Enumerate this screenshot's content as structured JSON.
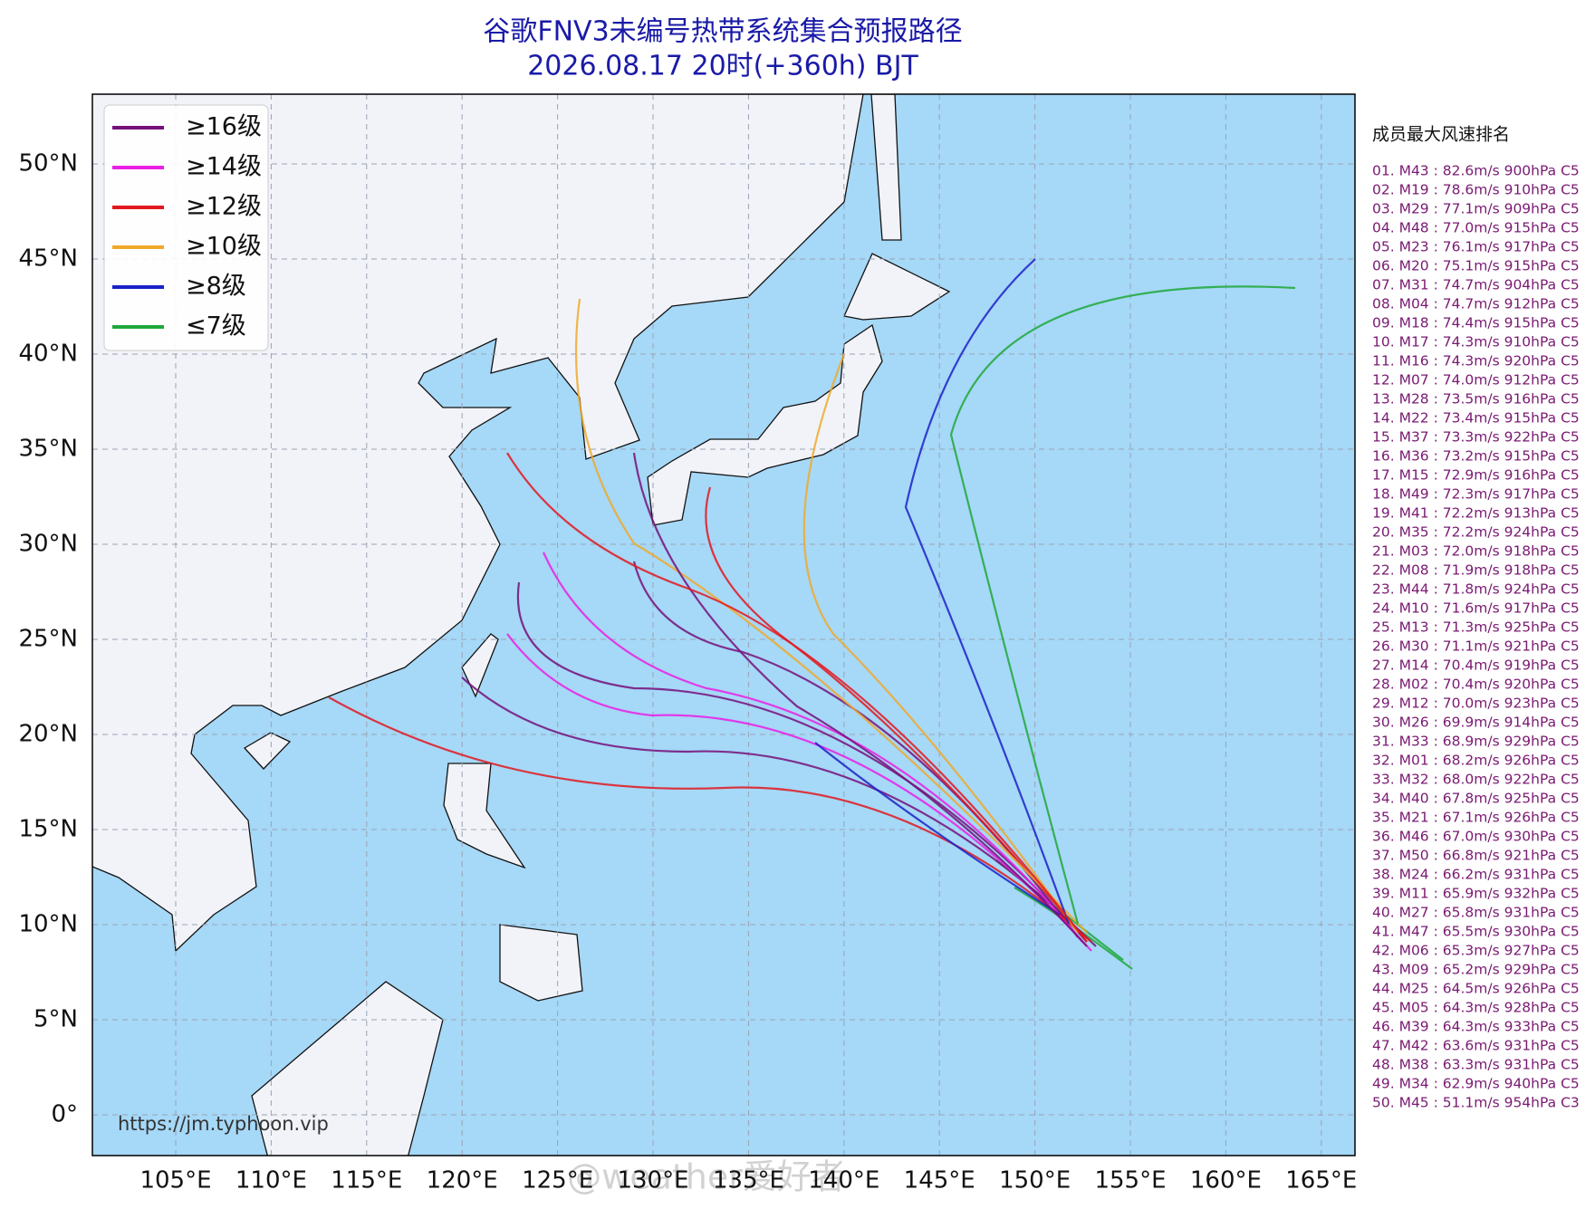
{
  "header": {
    "title": "谷歌FNV3未编号热带系统集合预报路径",
    "subtitle": "2026.08.17 20时(+360h) BJT"
  },
  "legend": [
    {
      "label": "≥16级",
      "color": "#76107a"
    },
    {
      "label": "≥14级",
      "color": "#ea1fe6"
    },
    {
      "label": "≥12级",
      "color": "#e3171f"
    },
    {
      "label": "≥10级",
      "color": "#f0a92a"
    },
    {
      "label": "≥8级",
      "color": "#1b22c8"
    },
    {
      "label": "≤7级",
      "color": "#1fa83a"
    }
  ],
  "map": {
    "lat_ticks": [
      "50°N",
      "45°N",
      "40°N",
      "35°N",
      "30°N",
      "25°N",
      "20°N",
      "15°N",
      "10°N",
      "5°N",
      "0°"
    ],
    "lon_ticks": [
      "105°E",
      "110°E",
      "115°E",
      "120°E",
      "125°E",
      "130°E",
      "135°E",
      "140°E",
      "145°E",
      "150°E",
      "155°E",
      "160°E",
      "165°E"
    ],
    "source": "https://jm.typhoon.vip",
    "watermark": "@weather爱好者"
  },
  "ranking": {
    "title": "成员最大风速排名",
    "items": [
      "01. M43 : 82.6m/s 900hPa C5",
      "02. M19 : 78.6m/s 910hPa C5",
      "03. M29 : 77.1m/s 909hPa C5",
      "04. M48 : 77.0m/s 915hPa C5",
      "05. M23 : 76.1m/s 917hPa C5",
      "06. M20 : 75.1m/s 915hPa C5",
      "07. M31 : 74.7m/s 904hPa C5",
      "08. M04 : 74.7m/s 912hPa C5",
      "09. M18 : 74.4m/s 915hPa C5",
      "10. M17 : 74.3m/s 910hPa C5",
      "11. M16 : 74.3m/s 920hPa C5",
      "12. M07 : 74.0m/s 912hPa C5",
      "13. M28 : 73.5m/s 916hPa C5",
      "14. M22 : 73.4m/s 915hPa C5",
      "15. M37 : 73.3m/s 922hPa C5",
      "16. M36 : 73.2m/s 915hPa C5",
      "17. M15 : 72.9m/s 916hPa C5",
      "18. M49 : 72.3m/s 917hPa C5",
      "19. M41 : 72.2m/s 913hPa C5",
      "20. M35 : 72.2m/s 924hPa C5",
      "21. M03 : 72.0m/s 918hPa C5",
      "22. M08 : 71.9m/s 918hPa C5",
      "23. M44 : 71.8m/s 924hPa C5",
      "24. M10 : 71.6m/s 917hPa C5",
      "25. M13 : 71.3m/s 925hPa C5",
      "26. M30 : 71.1m/s 921hPa C5",
      "27. M14 : 70.4m/s 919hPa C5",
      "28. M02 : 70.4m/s 920hPa C5",
      "29. M12 : 70.0m/s 923hPa C5",
      "30. M26 : 69.9m/s 914hPa C5",
      "31. M33 : 68.9m/s 929hPa C5",
      "32. M01 : 68.2m/s 926hPa C5",
      "33. M32 : 68.0m/s 922hPa C5",
      "34. M40 : 67.8m/s 925hPa C5",
      "35. M21 : 67.1m/s 926hPa C5",
      "36. M46 : 67.0m/s 930hPa C5",
      "37. M50 : 66.8m/s 921hPa C5",
      "38. M24 : 66.2m/s 931hPa C5",
      "39. M11 : 65.9m/s 932hPa C5",
      "40. M27 : 65.8m/s 931hPa C5",
      "41. M47 : 65.5m/s 930hPa C5",
      "42. M06 : 65.3m/s 927hPa C5",
      "43. M09 : 65.2m/s 929hPa C5",
      "44. M25 : 64.5m/s 926hPa C5",
      "45. M05 : 64.3m/s 928hPa C5",
      "46. M39 : 64.3m/s 933hPa C5",
      "47. M42 : 63.6m/s 931hPa C5",
      "48. M38 : 63.3m/s 931hPa C5",
      "49. M34 : 62.9m/s 940hPa C5",
      "50. M45 : 51.1m/s 954hPa C3"
    ]
  }
}
